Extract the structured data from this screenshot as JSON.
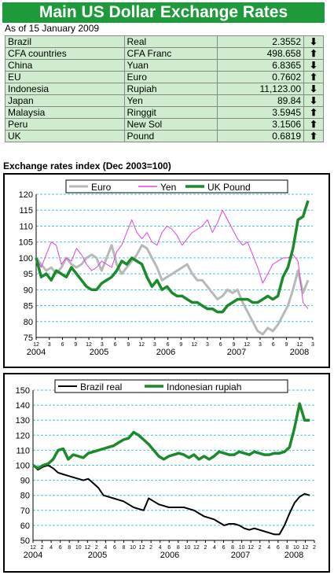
{
  "header": {
    "title": "Main US Dollar Exchange Rates",
    "as_of": "As of 15 January 2009"
  },
  "rates": [
    {
      "country": "Brazil",
      "currency": "Real",
      "value": "2.3552",
      "dir": "down"
    },
    {
      "country": "CFA countries",
      "currency": "CFA Franc",
      "value": "498.658",
      "dir": "up"
    },
    {
      "country": "China",
      "currency": "Yuan",
      "value": "6.8365",
      "dir": "down"
    },
    {
      "country": "EU",
      "currency": "Euro",
      "value": "0.7602",
      "dir": "up"
    },
    {
      "country": "Indonesia",
      "currency": "Rupiah",
      "value": "11,123.00",
      "dir": "down"
    },
    {
      "country": "Japan",
      "currency": "Yen",
      "value": "89.84",
      "dir": "down"
    },
    {
      "country": "Malaysia",
      "currency": "Ringgit",
      "value": "3.5945",
      "dir": "up"
    },
    {
      "country": "Peru",
      "currency": "New Sol",
      "value": "3.1506",
      "dir": "up"
    },
    {
      "country": "UK",
      "currency": "Pound",
      "value": "0.6819",
      "dir": "up"
    }
  ],
  "section_title": "Exchange rates index (Dec 2003=100)",
  "colors": {
    "header_bg": "#1f9a3a",
    "table_bg": "#cfeccf",
    "euro": "#b8b8b8",
    "yen": "#e040e0",
    "uk": "#1a8a2a",
    "brazil": "#000000",
    "indonesia": "#1a8a2a",
    "grid": "#40c8e8"
  },
  "chart_data": [
    {
      "type": "line",
      "ylim": [
        75,
        120
      ],
      "yticks": [
        75,
        80,
        85,
        90,
        95,
        100,
        105,
        110,
        115,
        120
      ],
      "xtick_labels": [
        "12",
        "3",
        "6",
        "9",
        "12",
        "3",
        "6",
        "9",
        "12",
        "3",
        "6",
        "9",
        "12",
        "3",
        "6",
        "9",
        "12",
        "3",
        "6",
        "9",
        "12",
        "3"
      ],
      "year_labels": [
        "2004",
        "2005",
        "2006",
        "2007",
        "2008"
      ],
      "legend": "top",
      "grid": true,
      "series": [
        {
          "name": "Euro",
          "color": "#b8b8b8",
          "width": 3,
          "values": [
            100,
            98,
            96,
            97,
            95,
            97,
            100,
            98,
            97,
            98,
            100,
            101,
            100,
            96,
            100,
            104,
            98,
            95,
            97,
            99,
            101,
            104,
            103,
            100,
            97,
            93,
            94,
            95,
            96,
            97,
            98,
            95,
            93,
            93,
            91,
            89,
            87,
            88,
            90,
            89,
            90,
            86,
            83,
            80,
            77,
            76,
            78,
            77,
            79,
            82,
            85,
            90,
            96,
            89,
            93
          ]
        },
        {
          "name": "Yen",
          "color": "#e040e0",
          "width": 1,
          "values": [
            100,
            97,
            101,
            105,
            104,
            98,
            100,
            99,
            103,
            101,
            98,
            96,
            97,
            99,
            98,
            97,
            102,
            104,
            108,
            112,
            108,
            106,
            108,
            105,
            104,
            108,
            110,
            109,
            107,
            104,
            106,
            108,
            109,
            110,
            112,
            108,
            111,
            115,
            112,
            109,
            106,
            104,
            105,
            101,
            97,
            92,
            95,
            98,
            99,
            100,
            100,
            101,
            99,
            86,
            84
          ]
        },
        {
          "name": "UK Pound",
          "color": "#1a8a2a",
          "width": 3.5,
          "values": [
            100,
            94,
            95,
            93,
            96,
            95,
            94,
            97,
            95,
            93,
            91,
            90,
            90,
            92,
            93,
            94,
            96,
            99,
            98,
            100,
            99,
            98,
            94,
            91,
            93,
            90,
            91,
            89,
            88,
            88,
            87,
            86,
            86,
            85,
            84,
            84,
            83,
            83,
            85,
            86,
            87,
            87,
            87,
            86,
            86,
            87,
            88,
            87,
            88,
            94,
            97,
            103,
            112,
            113,
            118
          ]
        }
      ]
    },
    {
      "type": "line",
      "ylim": [
        50,
        150
      ],
      "yticks": [
        50,
        60,
        70,
        80,
        90,
        100,
        110,
        120,
        130,
        140,
        150
      ],
      "xtick_labels": [
        "12",
        "2",
        "4",
        "6",
        "8",
        "10",
        "12",
        "2",
        "4",
        "6",
        "8",
        "10",
        "12",
        "2",
        "4",
        "6",
        "8",
        "10",
        "12",
        "2",
        "4",
        "6",
        "8",
        "10",
        "12",
        "2",
        "4",
        "6",
        "8",
        "10",
        "12",
        "2"
      ],
      "year_labels": [
        "2004",
        "2005",
        "2006",
        "2007",
        "2008"
      ],
      "legend": "top",
      "grid": true,
      "series": [
        {
          "name": "Brazil real",
          "color": "#000000",
          "width": 2,
          "values": [
            100,
            97,
            99,
            100,
            98,
            95,
            94,
            93,
            92,
            91,
            90,
            91,
            88,
            85,
            80,
            79,
            78,
            77,
            76,
            74,
            72,
            71,
            70,
            78,
            76,
            74,
            73,
            72,
            72,
            72,
            72,
            71,
            70,
            68,
            66,
            65,
            64,
            62,
            60,
            61,
            61,
            60,
            58,
            57,
            58,
            57,
            56,
            55,
            54,
            54,
            60,
            68,
            75,
            79,
            81,
            80
          ]
        },
        {
          "name": "Indonesian rupiah",
          "color": "#1a8a2a",
          "width": 3.5,
          "values": [
            100,
            98,
            100,
            101,
            104,
            110,
            111,
            104,
            107,
            106,
            105,
            108,
            109,
            110,
            111,
            112,
            113,
            115,
            117,
            118,
            122,
            120,
            117,
            114,
            110,
            106,
            104,
            106,
            107,
            108,
            107,
            105,
            107,
            104,
            106,
            104,
            106,
            109,
            108,
            107,
            107,
            109,
            108,
            107,
            109,
            108,
            107,
            107,
            108,
            108,
            109,
            112,
            125,
            141,
            130,
            130
          ]
        }
      ]
    }
  ]
}
